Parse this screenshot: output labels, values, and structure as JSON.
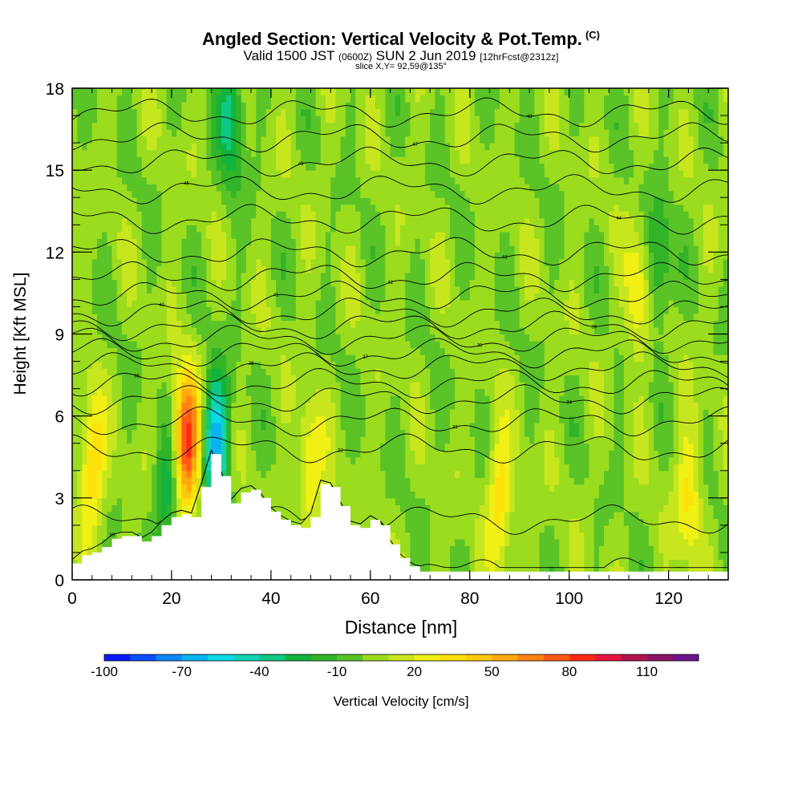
{
  "header": {
    "title": "Angled Section: Vertical Velocity & Pot.Temp.",
    "title_unit": "(C)",
    "valid_prefix": "Valid 1500 JST",
    "valid_zulu": "(0600Z)",
    "valid_date": "SUN 2 Jun 2019",
    "forecast_info": "[12hrFcst@2312z]",
    "slice_info": "slice X,Y= 92,59@135°"
  },
  "chart_data": {
    "type": "heatmap",
    "xlabel": "Distance [nm]",
    "ylabel": "Height [Kft MSL]",
    "xlim": [
      0,
      132
    ],
    "ylim": [
      0,
      18
    ],
    "x_ticks": [
      0,
      20,
      40,
      60,
      80,
      100,
      120
    ],
    "y_ticks": [
      0,
      3,
      6,
      9,
      12,
      15,
      18
    ],
    "colorbar": {
      "label": "Vertical Velocity [cm/s]",
      "min": -100,
      "max": 120,
      "step": 10,
      "tick_values": [
        -100,
        -70,
        -40,
        -10,
        20,
        50,
        80,
        110
      ],
      "colors": [
        "#0a1aff",
        "#0a4dff",
        "#0a86f5",
        "#0ab4f0",
        "#0ad9e6",
        "#12d2b4",
        "#0fc882",
        "#14b43c",
        "#32b428",
        "#5ac328",
        "#9bdc1e",
        "#c8e61e",
        "#f0f014",
        "#ffe10a",
        "#ffc80a",
        "#ffaa0a",
        "#ff8214",
        "#ff5a14",
        "#ff2814",
        "#e6143c",
        "#b41450",
        "#8c1464",
        "#6e148c"
      ]
    },
    "updraft_cores": [
      {
        "x": 4,
        "y": 4.2,
        "w": 40
      },
      {
        "x": 23,
        "y": 5.0,
        "w": 85
      },
      {
        "x": 48,
        "y": 4.0,
        "w": 30
      },
      {
        "x": 86,
        "y": 3.0,
        "w": 35
      },
      {
        "x": 114,
        "y": 10.5,
        "w": 30
      },
      {
        "x": 124,
        "y": 3.0,
        "w": 30
      }
    ],
    "downdraft_cores": [
      {
        "x": 29,
        "y": 5.0,
        "w": -70
      },
      {
        "x": 32,
        "y": 17.0,
        "w": -40
      },
      {
        "x": 19,
        "y": 3.0,
        "w": -35
      },
      {
        "x": 118,
        "y": 11.5,
        "w": -30
      }
    ],
    "terrain": {
      "x": [
        0,
        2,
        4,
        6,
        8,
        10,
        12,
        14,
        16,
        18,
        20,
        22,
        24,
        26,
        28,
        30,
        32,
        34,
        36,
        38,
        40,
        42,
        44,
        46,
        48,
        50,
        52,
        54,
        56,
        58,
        60,
        62,
        64,
        66,
        68,
        70,
        72,
        132
      ],
      "height": [
        0.6,
        0.9,
        1.0,
        1.2,
        1.5,
        1.6,
        1.6,
        1.4,
        1.6,
        2.0,
        2.3,
        2.4,
        2.3,
        3.4,
        4.6,
        3.8,
        2.8,
        3.2,
        3.3,
        3.0,
        2.5,
        2.2,
        2.0,
        1.9,
        2.3,
        3.5,
        3.4,
        2.7,
        2.0,
        1.9,
        2.2,
        2.0,
        1.3,
        0.8,
        0.5,
        0.3,
        0.3,
        0.3
      ]
    },
    "theta_contours": [
      {
        "level": 30,
        "base": 0.3
      },
      {
        "level": 31,
        "base": 2.2
      },
      {
        "level": 32,
        "base": 4.8
      },
      {
        "level": 33,
        "base": 5.8
      },
      {
        "level": 34,
        "base": 6.6
      },
      {
        "level": 35,
        "base": 7.2
      },
      {
        "level": 36,
        "base": 7.8
      },
      {
        "level": 37,
        "base": 8.3
      },
      {
        "level": 38,
        "base": 8.8
      },
      {
        "level": 39,
        "base": 9.3
      },
      {
        "level": 40,
        "base": 9.8
      },
      {
        "level": 41,
        "base": 10.4
      },
      {
        "level": 42,
        "base": 11.1
      },
      {
        "level": 43,
        "base": 12.0
      },
      {
        "level": 44,
        "base": 13.2
      },
      {
        "level": 45,
        "base": 14.3
      },
      {
        "level": 46,
        "base": 15.3
      },
      {
        "level": 47,
        "base": 16.2
      },
      {
        "level": 48,
        "base": 17.1
      }
    ]
  }
}
